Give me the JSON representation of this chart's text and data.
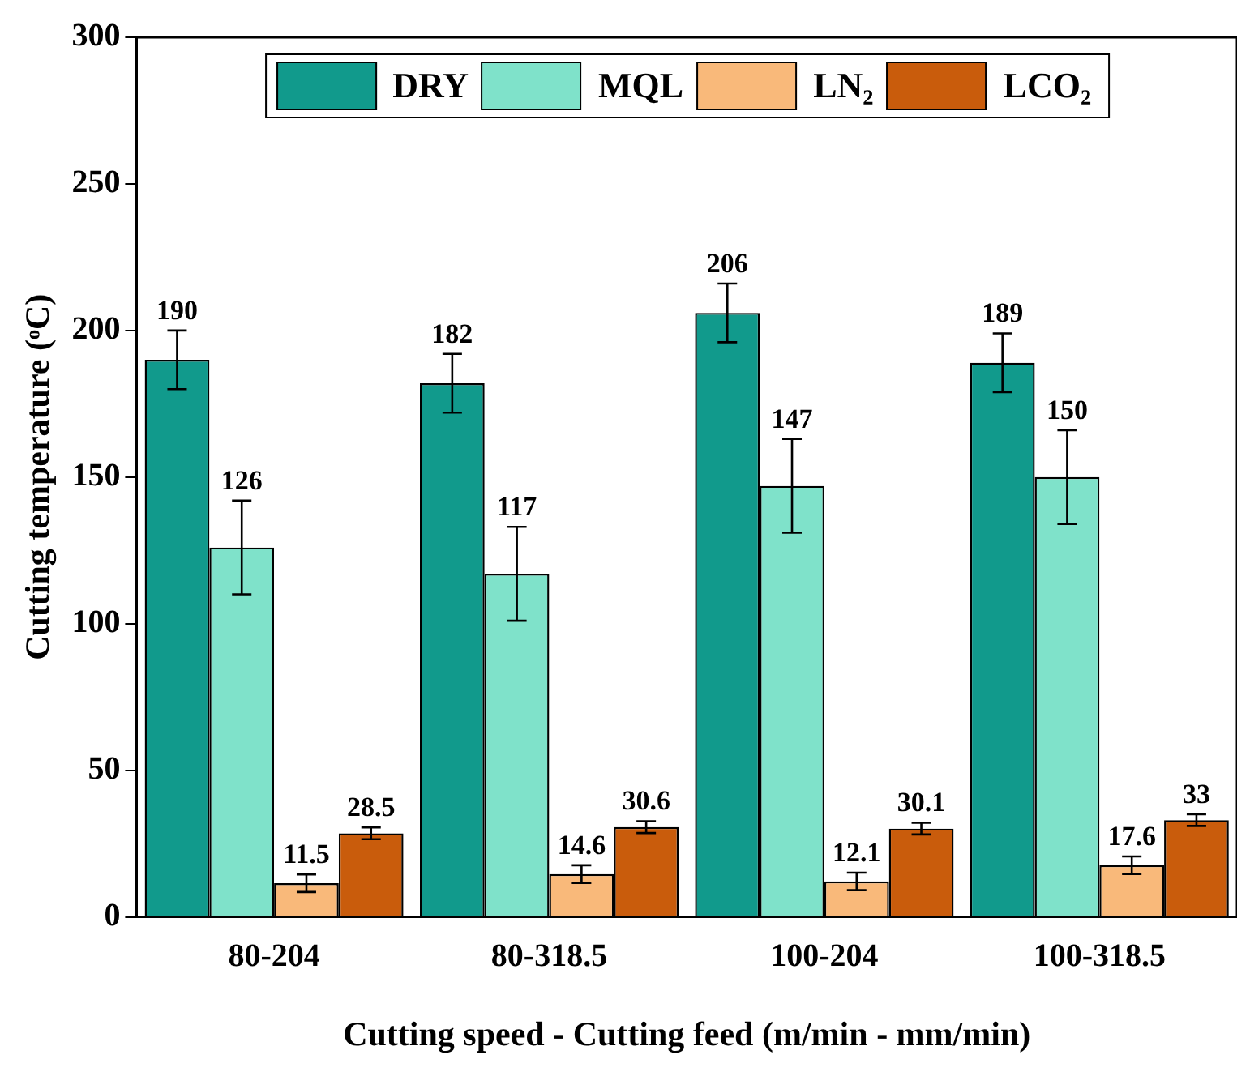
{
  "chart_data": {
    "type": "bar",
    "xlabel": "Cutting speed - Cutting feed (m/min - mm/min)",
    "ylabel": "Cutting temperature (ᵒC)",
    "categories": [
      "80-204",
      "80-318.5",
      "100-204",
      "100-318.5"
    ],
    "series": [
      {
        "name": "DRY",
        "color": "#119a8c",
        "values": [
          190,
          182,
          206,
          189
        ],
        "errors": [
          10,
          10,
          10,
          10
        ]
      },
      {
        "name": "MQL",
        "color": "#7fe2ca",
        "values": [
          126,
          117,
          147,
          150
        ],
        "errors": [
          16,
          16,
          16,
          16
        ]
      },
      {
        "name": "LN₂",
        "color": "#f9b97a",
        "values": [
          11.5,
          14.6,
          12.1,
          17.6
        ],
        "errors": [
          3,
          3,
          3,
          3
        ]
      },
      {
        "name": "LCO₂",
        "color": "#c95c0c",
        "values": [
          28.5,
          30.6,
          30.1,
          33
        ],
        "errors": [
          2,
          2,
          2,
          2
        ]
      }
    ],
    "ylim": [
      0,
      300
    ],
    "yticks": [
      0,
      50,
      100,
      150,
      200,
      250,
      300
    ],
    "grid": false,
    "legend": "top",
    "data_labels": true
  }
}
